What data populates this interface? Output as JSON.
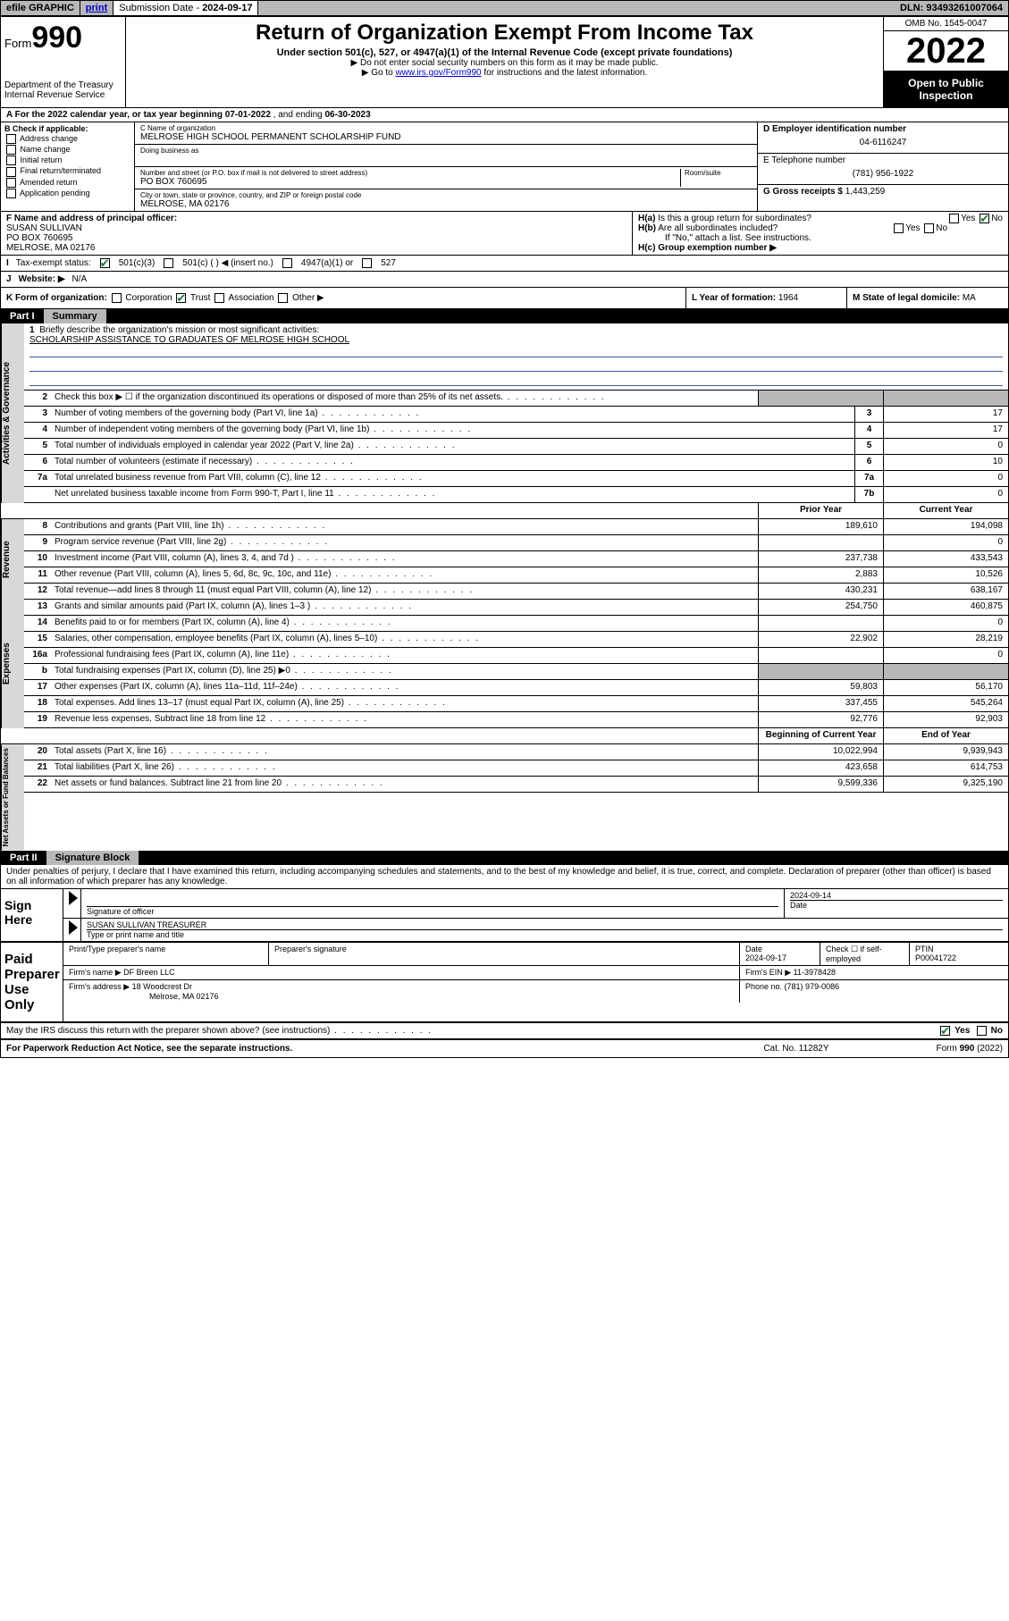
{
  "topbar": {
    "efile": "efile GRAPHIC",
    "print": "print",
    "sub_label": "Submission Date - ",
    "sub_date": "2024-09-17",
    "dln_label": "DLN: ",
    "dln": "93493261007064"
  },
  "header": {
    "form_prefix": "Form",
    "form_num": "990",
    "dept": "Department of the Treasury\nInternal Revenue Service",
    "title": "Return of Organization Exempt From Income Tax",
    "sub1": "Under section 501(c), 527, or 4947(a)(1) of the Internal Revenue Code (except private foundations)",
    "sub2": "▶ Do not enter social security numbers on this form as it may be made public.",
    "sub3_pre": "▶ Go to ",
    "sub3_link": "www.irs.gov/Form990",
    "sub3_post": " for instructions and the latest information.",
    "omb": "OMB No. 1545-0047",
    "year": "2022",
    "open": "Open to Public Inspection"
  },
  "row_a": {
    "text": "A For the 2022 calendar year, or tax year beginning ",
    "begin": "07-01-2022",
    "mid": " , and ending ",
    "end": "06-30-2023"
  },
  "col_b": {
    "label": "B Check if applicable:",
    "opts": [
      "Address change",
      "Name change",
      "Initial return",
      "Final return/terminated",
      "Amended return",
      "Application pending"
    ]
  },
  "col_c": {
    "name_lbl": "C Name of organization",
    "name": "MELROSE HIGH SCHOOL PERMANENT SCHOLARSHIP FUND",
    "dba_lbl": "Doing business as",
    "addr_lbl": "Number and street (or P.O. box if mail is not delivered to street address)",
    "room_lbl": "Room/suite",
    "addr": "PO BOX 760695",
    "city_lbl": "City or town, state or province, country, and ZIP or foreign postal code",
    "city": "MELROSE, MA  02176"
  },
  "col_d": {
    "ein_lbl": "D Employer identification number",
    "ein": "04-6116247",
    "phone_lbl": "E Telephone number",
    "phone": "(781) 956-1922",
    "gross_lbl": "G Gross receipts $ ",
    "gross": "1,443,259"
  },
  "row_f": {
    "lbl": "F Name and address of principal officer:",
    "name": "SUSAN SULLIVAN",
    "addr1": "PO BOX 760695",
    "addr2": "MELROSE, MA  02176"
  },
  "row_h": {
    "ha": "H(a)  Is this a group return for subordinates?",
    "hb": "H(b)  Are all subordinates included?",
    "hb_note": "If \"No,\" attach a list. See instructions.",
    "hc": "H(c)  Group exemption number ▶",
    "yes": "Yes",
    "no": "No"
  },
  "row_i": {
    "lbl": "Tax-exempt status:",
    "o1": "501(c)(3)",
    "o2": "501(c) (  ) ◀ (insert no.)",
    "o3": "4947(a)(1) or",
    "o4": "527"
  },
  "row_j": {
    "lbl": "Website: ▶",
    "val": "N/A"
  },
  "row_k": {
    "lbl": "K Form of organization:",
    "opts": [
      "Corporation",
      "Trust",
      "Association",
      "Other ▶"
    ]
  },
  "row_l": {
    "lbl": "L Year of formation: ",
    "val": "1964"
  },
  "row_m": {
    "lbl": "M State of legal domicile: ",
    "val": "MA"
  },
  "part1": {
    "num": "Part I",
    "title": "Summary"
  },
  "briefly": {
    "num": "1",
    "lbl": "Briefly describe the organization's mission or most significant activities:",
    "text": "SCHOLARSHIP ASSISTANCE TO GRADUATES OF MELROSE HIGH SCHOOL"
  },
  "gov_lines": [
    {
      "n": "2",
      "d": "Check this box ▶ ☐ if the organization discontinued its operations or disposed of more than 25% of its net assets.",
      "box": "",
      "v1": "",
      "v2": ""
    },
    {
      "n": "3",
      "d": "Number of voting members of the governing body (Part VI, line 1a)",
      "box": "3",
      "v2": "17"
    },
    {
      "n": "4",
      "d": "Number of independent voting members of the governing body (Part VI, line 1b)",
      "box": "4",
      "v2": "17"
    },
    {
      "n": "5",
      "d": "Total number of individuals employed in calendar year 2022 (Part V, line 2a)",
      "box": "5",
      "v2": "0"
    },
    {
      "n": "6",
      "d": "Total number of volunteers (estimate if necessary)",
      "box": "6",
      "v2": "10"
    },
    {
      "n": "7a",
      "d": "Total unrelated business revenue from Part VIII, column (C), line 12",
      "box": "7a",
      "v2": "0"
    },
    {
      "n": "",
      "d": "Net unrelated business taxable income from Form 990-T, Part I, line 11",
      "box": "7b",
      "v2": "0"
    }
  ],
  "col_hdr": {
    "prior": "Prior Year",
    "current": "Current Year",
    "begin": "Beginning of Current Year",
    "end": "End of Year"
  },
  "rev_lines": [
    {
      "n": "8",
      "d": "Contributions and grants (Part VIII, line 1h)",
      "v1": "189,610",
      "v2": "194,098"
    },
    {
      "n": "9",
      "d": "Program service revenue (Part VIII, line 2g)",
      "v1": "",
      "v2": "0"
    },
    {
      "n": "10",
      "d": "Investment income (Part VIII, column (A), lines 3, 4, and 7d )",
      "v1": "237,738",
      "v2": "433,543"
    },
    {
      "n": "11",
      "d": "Other revenue (Part VIII, column (A), lines 5, 6d, 8c, 9c, 10c, and 11e)",
      "v1": "2,883",
      "v2": "10,526"
    },
    {
      "n": "12",
      "d": "Total revenue—add lines 8 through 11 (must equal Part VIII, column (A), line 12)",
      "v1": "430,231",
      "v2": "638,167"
    }
  ],
  "exp_lines": [
    {
      "n": "13",
      "d": "Grants and similar amounts paid (Part IX, column (A), lines 1–3 )",
      "v1": "254,750",
      "v2": "460,875"
    },
    {
      "n": "14",
      "d": "Benefits paid to or for members (Part IX, column (A), line 4)",
      "v1": "",
      "v2": "0"
    },
    {
      "n": "15",
      "d": "Salaries, other compensation, employee benefits (Part IX, column (A), lines 5–10)",
      "v1": "22,902",
      "v2": "28,219"
    },
    {
      "n": "16a",
      "d": "Professional fundraising fees (Part IX, column (A), line 11e)",
      "v1": "",
      "v2": "0"
    },
    {
      "n": "b",
      "d": "Total fundraising expenses (Part IX, column (D), line 25) ▶0",
      "v1": "shade",
      "v2": "shade"
    },
    {
      "n": "17",
      "d": "Other expenses (Part IX, column (A), lines 11a–11d, 11f–24e)",
      "v1": "59,803",
      "v2": "56,170"
    },
    {
      "n": "18",
      "d": "Total expenses. Add lines 13–17 (must equal Part IX, column (A), line 25)",
      "v1": "337,455",
      "v2": "545,264"
    },
    {
      "n": "19",
      "d": "Revenue less expenses. Subtract line 18 from line 12",
      "v1": "92,776",
      "v2": "92,903"
    }
  ],
  "net_lines": [
    {
      "n": "20",
      "d": "Total assets (Part X, line 16)",
      "v1": "10,022,994",
      "v2": "9,939,943"
    },
    {
      "n": "21",
      "d": "Total liabilities (Part X, line 26)",
      "v1": "423,658",
      "v2": "614,753"
    },
    {
      "n": "22",
      "d": "Net assets or fund balances. Subtract line 21 from line 20",
      "v1": "9,599,336",
      "v2": "9,325,190"
    }
  ],
  "side_labels": {
    "gov": "Activities & Governance",
    "rev": "Revenue",
    "exp": "Expenses",
    "net": "Net Assets or Fund Balances"
  },
  "part2": {
    "num": "Part II",
    "title": "Signature Block"
  },
  "sig_intro": "Under penalties of perjury, I declare that I have examined this return, including accompanying schedules and statements, and to the best of my knowledge and belief, it is true, correct, and complete. Declaration of preparer (other than officer) is based on all information of which preparer has any knowledge.",
  "sign_here": {
    "lbl": "Sign Here",
    "sig_lbl": "Signature of officer",
    "date_lbl": "Date",
    "date": "2024-09-14",
    "name": "SUSAN SULLIVAN TREASURER",
    "name_lbl": "Type or print name and title"
  },
  "paid": {
    "lbl": "Paid Preparer Use Only",
    "col1": "Print/Type preparer's name",
    "col2": "Preparer's signature",
    "col3_lbl": "Date",
    "col3": "2024-09-17",
    "col4": "Check ☐ if self-employed",
    "col5_lbl": "PTIN",
    "col5": "P00041722",
    "firm_name_lbl": "Firm's name    ▶ ",
    "firm_name": "DF Breen LLC",
    "firm_ein_lbl": "Firm's EIN ▶ ",
    "firm_ein": "11-3978428",
    "firm_addr_lbl": "Firm's address ▶ ",
    "firm_addr1": "18 Woodcrest Dr",
    "firm_addr2": "Melrose, MA  02176",
    "firm_phone_lbl": "Phone no. ",
    "firm_phone": "(781) 979-0086"
  },
  "discuss": {
    "q": "May the IRS discuss this return with the preparer shown above? (see instructions)",
    "yes": "Yes",
    "no": "No"
  },
  "footer": {
    "left": "For Paperwork Reduction Act Notice, see the separate instructions.",
    "mid": "Cat. No. 11282Y",
    "right": "Form 990 (2022)"
  }
}
